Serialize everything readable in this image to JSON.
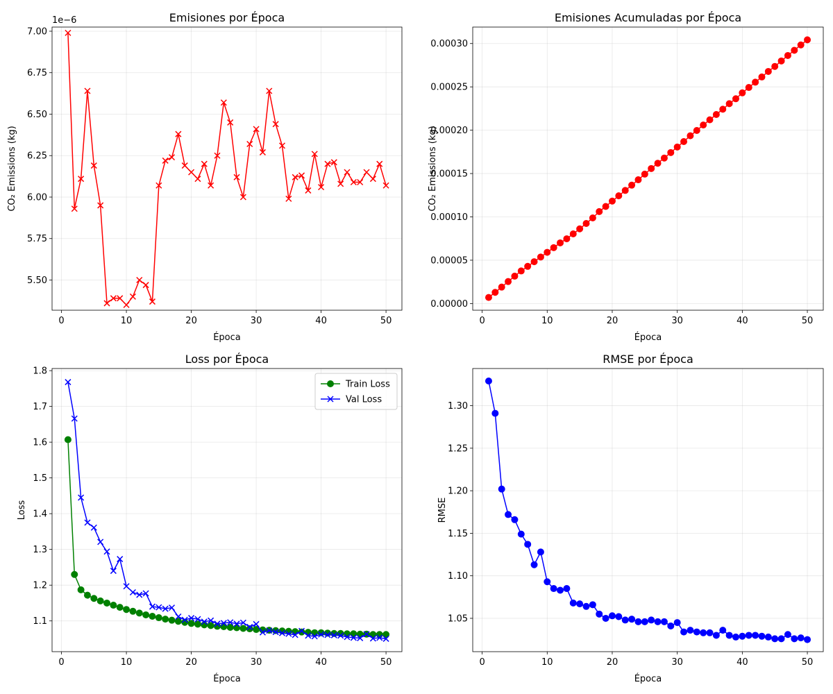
{
  "chart_data": [
    {
      "type": "line",
      "title": "Emisiones por Época",
      "xlabel": "Época",
      "ylabel": "CO₂ Emissions (kg)",
      "y_offset_label": "1e−6",
      "xlim": [
        -1.45,
        52.45
      ],
      "ylim": [
        5.318,
        7.025
      ],
      "xticks": [
        0,
        10,
        20,
        30,
        40,
        50
      ],
      "xtick_labels": [
        "0",
        "10",
        "20",
        "30",
        "40",
        "50"
      ],
      "yticks": [
        5.5,
        5.75,
        6.0,
        6.25,
        6.5,
        6.75,
        7.0
      ],
      "ytick_labels": [
        "5.50",
        "5.75",
        "6.00",
        "6.25",
        "6.50",
        "6.75",
        "7.00"
      ],
      "grid": true,
      "series": [
        {
          "color": "#ff0000",
          "marker": "x",
          "x": [
            1,
            2,
            3,
            4,
            5,
            6,
            7,
            8,
            9,
            10,
            11,
            12,
            13,
            14,
            15,
            16,
            17,
            18,
            19,
            20,
            21,
            22,
            23,
            24,
            25,
            26,
            27,
            28,
            29,
            30,
            31,
            32,
            33,
            34,
            35,
            36,
            37,
            38,
            39,
            40,
            41,
            42,
            43,
            44,
            45,
            46,
            47,
            48,
            49,
            50
          ],
          "values": [
            6.99,
            5.93,
            6.11,
            6.64,
            6.19,
            5.95,
            5.36,
            5.39,
            5.39,
            5.35,
            5.4,
            5.5,
            5.47,
            5.37,
            6.07,
            6.22,
            6.24,
            6.38,
            6.19,
            6.15,
            6.11,
            6.2,
            6.07,
            6.25,
            6.57,
            6.45,
            6.12,
            6.0,
            6.32,
            6.41,
            6.27,
            6.64,
            6.44,
            6.31,
            5.99,
            6.12,
            6.13,
            6.04,
            6.26,
            6.06,
            6.2,
            6.21,
            6.08,
            6.15,
            6.09,
            6.09,
            6.15,
            6.11,
            6.2,
            6.07
          ]
        }
      ]
    },
    {
      "type": "line",
      "title": "Emisiones Acumuladas por Época",
      "xlabel": "Época",
      "ylabel": "CO₂ Emissions (kg)",
      "xlim": [
        -1.45,
        52.45
      ],
      "ylim": [
        -7.7e-06,
        0.000319
      ],
      "xticks": [
        0,
        10,
        20,
        30,
        40,
        50
      ],
      "xtick_labels": [
        "0",
        "10",
        "20",
        "30",
        "40",
        "50"
      ],
      "yticks": [
        0,
        5e-05,
        0.0001,
        0.00015,
        0.0002,
        0.00025,
        0.0003
      ],
      "ytick_labels": [
        "0.00000",
        "0.00005",
        "0.00010",
        "0.00015",
        "0.00020",
        "0.00025",
        "0.00030"
      ],
      "grid": true,
      "series": [
        {
          "color": "#ff0000",
          "marker": "o",
          "x": [
            1,
            2,
            3,
            4,
            5,
            6,
            7,
            8,
            9,
            10,
            11,
            12,
            13,
            14,
            15,
            16,
            17,
            18,
            19,
            20,
            21,
            22,
            23,
            24,
            25,
            26,
            27,
            28,
            29,
            30,
            31,
            32,
            33,
            34,
            35,
            36,
            37,
            38,
            39,
            40,
            41,
            42,
            43,
            44,
            45,
            46,
            47,
            48,
            49,
            50
          ],
          "values": [
            7e-06,
            1.29e-05,
            1.9e-05,
            2.54e-05,
            3.16e-05,
            3.76e-05,
            4.29e-05,
            4.83e-05,
            5.37e-05,
            5.91e-05,
            6.45e-05,
            7e-05,
            7.47e-05,
            8.04e-05,
            8.62e-05,
            9.24e-05,
            9.88e-05,
            0.0001061,
            0.000112,
            0.0001182,
            0.0001243,
            0.0001305,
            0.0001366,
            0.0001428,
            0.0001493,
            0.0001558,
            0.0001619,
            0.0001679,
            0.0001742,
            0.0001806,
            0.0001869,
            0.0001936,
            0.0001997,
            0.000206,
            0.000212,
            0.0002181,
            0.0002242,
            0.0002306,
            0.0002363,
            0.0002431,
            0.0002493,
            0.0002554,
            0.0002614,
            0.0002678,
            0.0002736,
            0.0002799,
            0.0002862,
            0.0002922,
            0.0002984,
            0.0003043
          ]
        }
      ]
    },
    {
      "type": "line",
      "title": "Loss por Época",
      "xlabel": "Época",
      "ylabel": "Loss",
      "xlim": [
        -1.45,
        52.45
      ],
      "ylim": [
        1.014,
        1.806
      ],
      "xticks": [
        0,
        10,
        20,
        30,
        40,
        50
      ],
      "xtick_labels": [
        "0",
        "10",
        "20",
        "30",
        "40",
        "50"
      ],
      "yticks": [
        1.1,
        1.2,
        1.3,
        1.4,
        1.5,
        1.6,
        1.7,
        1.8
      ],
      "ytick_labels": [
        "1.1",
        "1.2",
        "1.3",
        "1.4",
        "1.5",
        "1.6",
        "1.7",
        "1.8"
      ],
      "grid": true,
      "legend": "upper right",
      "series": [
        {
          "name": "Train Loss",
          "color": "#008000",
          "marker": "o",
          "x": [
            1,
            2,
            3,
            4,
            5,
            6,
            7,
            8,
            9,
            10,
            11,
            12,
            13,
            14,
            15,
            16,
            17,
            18,
            19,
            20,
            21,
            22,
            23,
            24,
            25,
            26,
            27,
            28,
            29,
            30,
            31,
            32,
            33,
            34,
            35,
            36,
            37,
            38,
            39,
            40,
            41,
            42,
            43,
            44,
            45,
            46,
            47,
            48,
            49,
            50
          ],
          "values": [
            1.607,
            1.23,
            1.187,
            1.172,
            1.163,
            1.156,
            1.15,
            1.144,
            1.138,
            1.132,
            1.127,
            1.122,
            1.117,
            1.113,
            1.109,
            1.105,
            1.102,
            1.099,
            1.096,
            1.093,
            1.091,
            1.089,
            1.087,
            1.085,
            1.084,
            1.082,
            1.081,
            1.079,
            1.078,
            1.076,
            1.075,
            1.074,
            1.073,
            1.072,
            1.071,
            1.07,
            1.069,
            1.068,
            1.067,
            1.067,
            1.066,
            1.065,
            1.065,
            1.064,
            1.064,
            1.063,
            1.063,
            1.062,
            1.062,
            1.062
          ]
        },
        {
          "name": "Val Loss",
          "color": "#0000ff",
          "marker": "x",
          "x": [
            1,
            2,
            3,
            4,
            5,
            6,
            7,
            8,
            9,
            10,
            11,
            12,
            13,
            14,
            15,
            16,
            17,
            18,
            19,
            20,
            21,
            22,
            23,
            24,
            25,
            26,
            27,
            28,
            29,
            30,
            31,
            32,
            33,
            34,
            35,
            36,
            37,
            38,
            39,
            40,
            41,
            42,
            43,
            44,
            45,
            46,
            47,
            48,
            49,
            50
          ],
          "values": [
            1.768,
            1.666,
            1.445,
            1.375,
            1.361,
            1.321,
            1.294,
            1.24,
            1.273,
            1.197,
            1.18,
            1.173,
            1.177,
            1.14,
            1.138,
            1.134,
            1.137,
            1.112,
            1.103,
            1.108,
            1.105,
            1.098,
            1.101,
            1.092,
            1.094,
            1.096,
            1.092,
            1.095,
            1.083,
            1.091,
            1.068,
            1.073,
            1.069,
            1.066,
            1.064,
            1.061,
            1.072,
            1.059,
            1.057,
            1.062,
            1.061,
            1.06,
            1.059,
            1.055,
            1.053,
            1.052,
            1.063,
            1.051,
            1.053,
            1.05
          ]
        }
      ]
    },
    {
      "type": "line",
      "title": "RMSE por Época",
      "xlabel": "Época",
      "ylabel": "RMSE",
      "xlim": [
        -1.45,
        52.45
      ],
      "ylim": [
        1.0108,
        1.3437
      ],
      "xticks": [
        0,
        10,
        20,
        30,
        40,
        50
      ],
      "xtick_labels": [
        "0",
        "10",
        "20",
        "30",
        "40",
        "50"
      ],
      "yticks": [
        1.05,
        1.1,
        1.15,
        1.2,
        1.25,
        1.3
      ],
      "ytick_labels": [
        "1.05",
        "1.10",
        "1.15",
        "1.20",
        "1.25",
        "1.30"
      ],
      "grid": true,
      "series": [
        {
          "color": "#0000ff",
          "marker": "o",
          "x": [
            1,
            2,
            3,
            4,
            5,
            6,
            7,
            8,
            9,
            10,
            11,
            12,
            13,
            14,
            15,
            16,
            17,
            18,
            19,
            20,
            21,
            22,
            23,
            24,
            25,
            26,
            27,
            28,
            29,
            30,
            31,
            32,
            33,
            34,
            35,
            36,
            37,
            38,
            39,
            40,
            41,
            42,
            43,
            44,
            45,
            46,
            47,
            48,
            49,
            50
          ],
          "values": [
            1.329,
            1.291,
            1.202,
            1.172,
            1.166,
            1.149,
            1.137,
            1.113,
            1.128,
            1.093,
            1.085,
            1.083,
            1.085,
            1.068,
            1.067,
            1.064,
            1.066,
            1.055,
            1.05,
            1.053,
            1.052,
            1.048,
            1.049,
            1.046,
            1.046,
            1.048,
            1.046,
            1.046,
            1.041,
            1.045,
            1.034,
            1.036,
            1.034,
            1.033,
            1.033,
            1.03,
            1.036,
            1.03,
            1.028,
            1.029,
            1.03,
            1.03,
            1.029,
            1.028,
            1.026,
            1.026,
            1.031,
            1.026,
            1.027,
            1.025
          ]
        }
      ]
    }
  ]
}
